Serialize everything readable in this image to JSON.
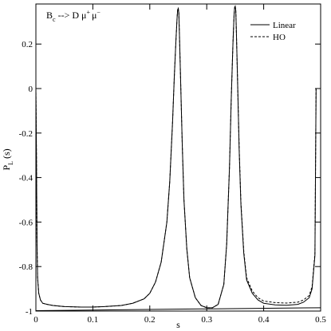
{
  "chart_data": {
    "type": "line",
    "title": "",
    "annotation": {
      "base": "B",
      "base_sub": "c",
      "arrow": " --> D ",
      "mu": "μ",
      "plus": "+",
      "minus": "−"
    },
    "xlabel": "s",
    "ylabel": "P",
    "ylabel_sub": "L",
    "ylabel_tail": " (s)",
    "xlim": [
      0,
      0.5
    ],
    "ylim": [
      -1.0,
      0.38
    ],
    "xticks": [
      0,
      0.1,
      0.2,
      0.3,
      0.4,
      0.5
    ],
    "xtick_labels": [
      "0",
      "0.1",
      "0.2",
      "0.3",
      "0.4",
      "0.5"
    ],
    "yticks": [
      -1,
      -0.8,
      -0.6,
      -0.4,
      -0.2,
      0,
      0.2
    ],
    "ytick_labels": [
      "-1",
      "-0.8",
      "-0.6",
      "-0.4",
      "-0.2",
      "0",
      "0.2"
    ],
    "grid": false,
    "legend_position": "top-right",
    "series": [
      {
        "name": "Linear",
        "style": "solid",
        "color": "#000000",
        "x": [
          0.0,
          0.001,
          0.002,
          0.003,
          0.005,
          0.008,
          0.012,
          0.02,
          0.03,
          0.05,
          0.08,
          0.1,
          0.12,
          0.15,
          0.17,
          0.19,
          0.2,
          0.21,
          0.22,
          0.23,
          0.235,
          0.24,
          0.243,
          0.246,
          0.248,
          0.249,
          0.25,
          0.251,
          0.252,
          0.254,
          0.257,
          0.26,
          0.265,
          0.27,
          0.28,
          0.29,
          0.3,
          0.31,
          0.32,
          0.33,
          0.335,
          0.34,
          0.343,
          0.346,
          0.348,
          0.349,
          0.35,
          0.351,
          0.352,
          0.354,
          0.357,
          0.36,
          0.365,
          0.37,
          0.38,
          0.39,
          0.4,
          0.42,
          0.44,
          0.46,
          0.47,
          0.48,
          0.485,
          0.49,
          0.492
        ],
        "y": [
          0.0,
          -0.3,
          -0.7,
          -0.85,
          -0.92,
          -0.95,
          -0.965,
          -0.97,
          -0.975,
          -0.98,
          -0.982,
          -0.982,
          -0.98,
          -0.975,
          -0.965,
          -0.945,
          -0.92,
          -0.87,
          -0.78,
          -0.6,
          -0.42,
          -0.15,
          0.05,
          0.22,
          0.32,
          0.355,
          0.36,
          0.34,
          0.25,
          0.05,
          -0.25,
          -0.5,
          -0.72,
          -0.85,
          -0.94,
          -0.975,
          -0.985,
          -0.985,
          -0.97,
          -0.88,
          -0.7,
          -0.35,
          -0.05,
          0.2,
          0.33,
          0.365,
          0.37,
          0.35,
          0.26,
          0.05,
          -0.28,
          -0.52,
          -0.74,
          -0.86,
          -0.92,
          -0.95,
          -0.965,
          -0.972,
          -0.974,
          -0.97,
          -0.96,
          -0.94,
          -0.9,
          -0.75,
          0.0
        ]
      },
      {
        "name": "HO",
        "style": "dashed",
        "color": "#000000",
        "x": [
          0.0,
          0.001,
          0.002,
          0.003,
          0.005,
          0.008,
          0.012,
          0.02,
          0.03,
          0.05,
          0.08,
          0.1,
          0.12,
          0.15,
          0.17,
          0.19,
          0.2,
          0.21,
          0.22,
          0.23,
          0.235,
          0.24,
          0.243,
          0.246,
          0.248,
          0.249,
          0.25,
          0.251,
          0.252,
          0.254,
          0.257,
          0.26,
          0.265,
          0.27,
          0.28,
          0.29,
          0.3,
          0.31,
          0.32,
          0.33,
          0.335,
          0.34,
          0.343,
          0.346,
          0.348,
          0.349,
          0.35,
          0.351,
          0.352,
          0.354,
          0.357,
          0.36,
          0.365,
          0.37,
          0.38,
          0.39,
          0.4,
          0.42,
          0.44,
          0.46,
          0.47,
          0.48,
          0.485,
          0.49,
          0.492
        ],
        "y": [
          0.0,
          -0.3,
          -0.7,
          -0.85,
          -0.92,
          -0.95,
          -0.965,
          -0.97,
          -0.975,
          -0.98,
          -0.982,
          -0.982,
          -0.98,
          -0.975,
          -0.965,
          -0.945,
          -0.92,
          -0.87,
          -0.78,
          -0.6,
          -0.42,
          -0.15,
          0.05,
          0.22,
          0.32,
          0.355,
          0.36,
          0.34,
          0.25,
          0.05,
          -0.25,
          -0.5,
          -0.72,
          -0.85,
          -0.94,
          -0.975,
          -0.985,
          -0.985,
          -0.97,
          -0.88,
          -0.7,
          -0.35,
          -0.05,
          0.2,
          0.33,
          0.365,
          0.37,
          0.35,
          0.26,
          0.05,
          -0.27,
          -0.51,
          -0.73,
          -0.85,
          -0.91,
          -0.94,
          -0.955,
          -0.962,
          -0.964,
          -0.96,
          -0.95,
          -0.93,
          -0.89,
          -0.74,
          0.0
        ]
      }
    ],
    "extra_lines": [
      {
        "style": "solid",
        "x": [
          0.0,
          0.5
        ],
        "y": [
          -0.998,
          -0.985
        ]
      }
    ]
  }
}
